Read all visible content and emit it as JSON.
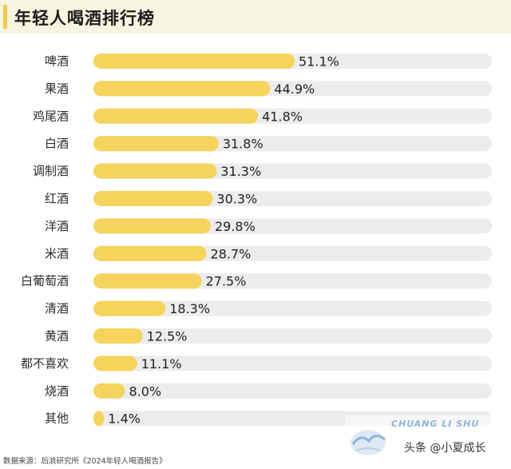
{
  "chart_data": {
    "type": "bar",
    "orientation": "horizontal",
    "title": "年轻人喝酒排行榜",
    "categories": [
      "啤酒",
      "果酒",
      "鸡尾酒",
      "白酒",
      "调制酒",
      "红酒",
      "洋酒",
      "米酒",
      "白葡萄酒",
      "清酒",
      "黄酒",
      "都不喜欢",
      "烧酒",
      "其他"
    ],
    "values": [
      51.1,
      44.9,
      41.8,
      31.8,
      31.3,
      30.3,
      29.8,
      28.7,
      27.5,
      18.3,
      12.5,
      11.1,
      8.0,
      1.4
    ],
    "value_labels": [
      "51.1%",
      "44.9%",
      "41.8%",
      "31.8%",
      "31.3%",
      "30.3%",
      "29.8%",
      "28.7%",
      "27.5%",
      "18.3%",
      "12.5%",
      "11.1%",
      "8.0%",
      "1.4%"
    ],
    "xlim": [
      0,
      100
    ],
    "unit": "%",
    "grid": false,
    "legend": "none",
    "bar_color": "#f6d35c",
    "track_color": "#ececec"
  },
  "source": "数据来源：后浪研究所《2024年轻人喝酒报告》",
  "watermark": {
    "text_en": "CHUANG LI SHU",
    "handle": "头条 @小夏成长"
  },
  "colors": {
    "title_accent": "#f2c94c",
    "title_background": "#f8f4e2"
  }
}
